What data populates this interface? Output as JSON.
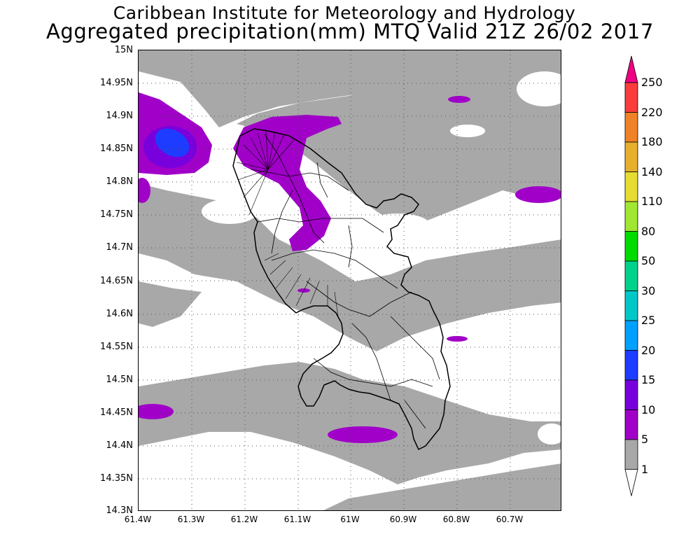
{
  "header": {
    "institute": "Caribbean Institute for Meteorology and Hydrology",
    "product": "Aggregated precipitation(mm) MTQ Valid 21Z 26/02 2017"
  },
  "map": {
    "region": "Martinique",
    "lat_labels": [
      "15N",
      "14.95N",
      "14.9N",
      "14.85N",
      "14.8N",
      "14.75N",
      "14.7N",
      "14.65N",
      "14.6N",
      "14.55N",
      "14.5N",
      "14.45N",
      "14.4N",
      "14.35N",
      "14.3N"
    ],
    "lon_labels": [
      "61.4W",
      "61.3W",
      "61.2W",
      "61.1W",
      "61W",
      "60.9W",
      "60.8W",
      "60.7W"
    ],
    "colors": {
      "level_1": "#a8a8a8",
      "level_5": "#a000c8",
      "level_10": "#7800dc",
      "level_15": "#1e3cff"
    }
  },
  "colorbar": {
    "levels": [
      "1",
      "5",
      "10",
      "15",
      "20",
      "25",
      "30",
      "50",
      "80",
      "110",
      "140",
      "180",
      "220",
      "250"
    ],
    "colors": [
      "#a8a8a8",
      "#a000c8",
      "#7800dc",
      "#1e3cff",
      "#00a0ff",
      "#00c8c8",
      "#00d28c",
      "#00dc00",
      "#a0e632",
      "#e6dc32",
      "#e6af2d",
      "#f08228",
      "#fa3c3c",
      "#f00082"
    ]
  }
}
